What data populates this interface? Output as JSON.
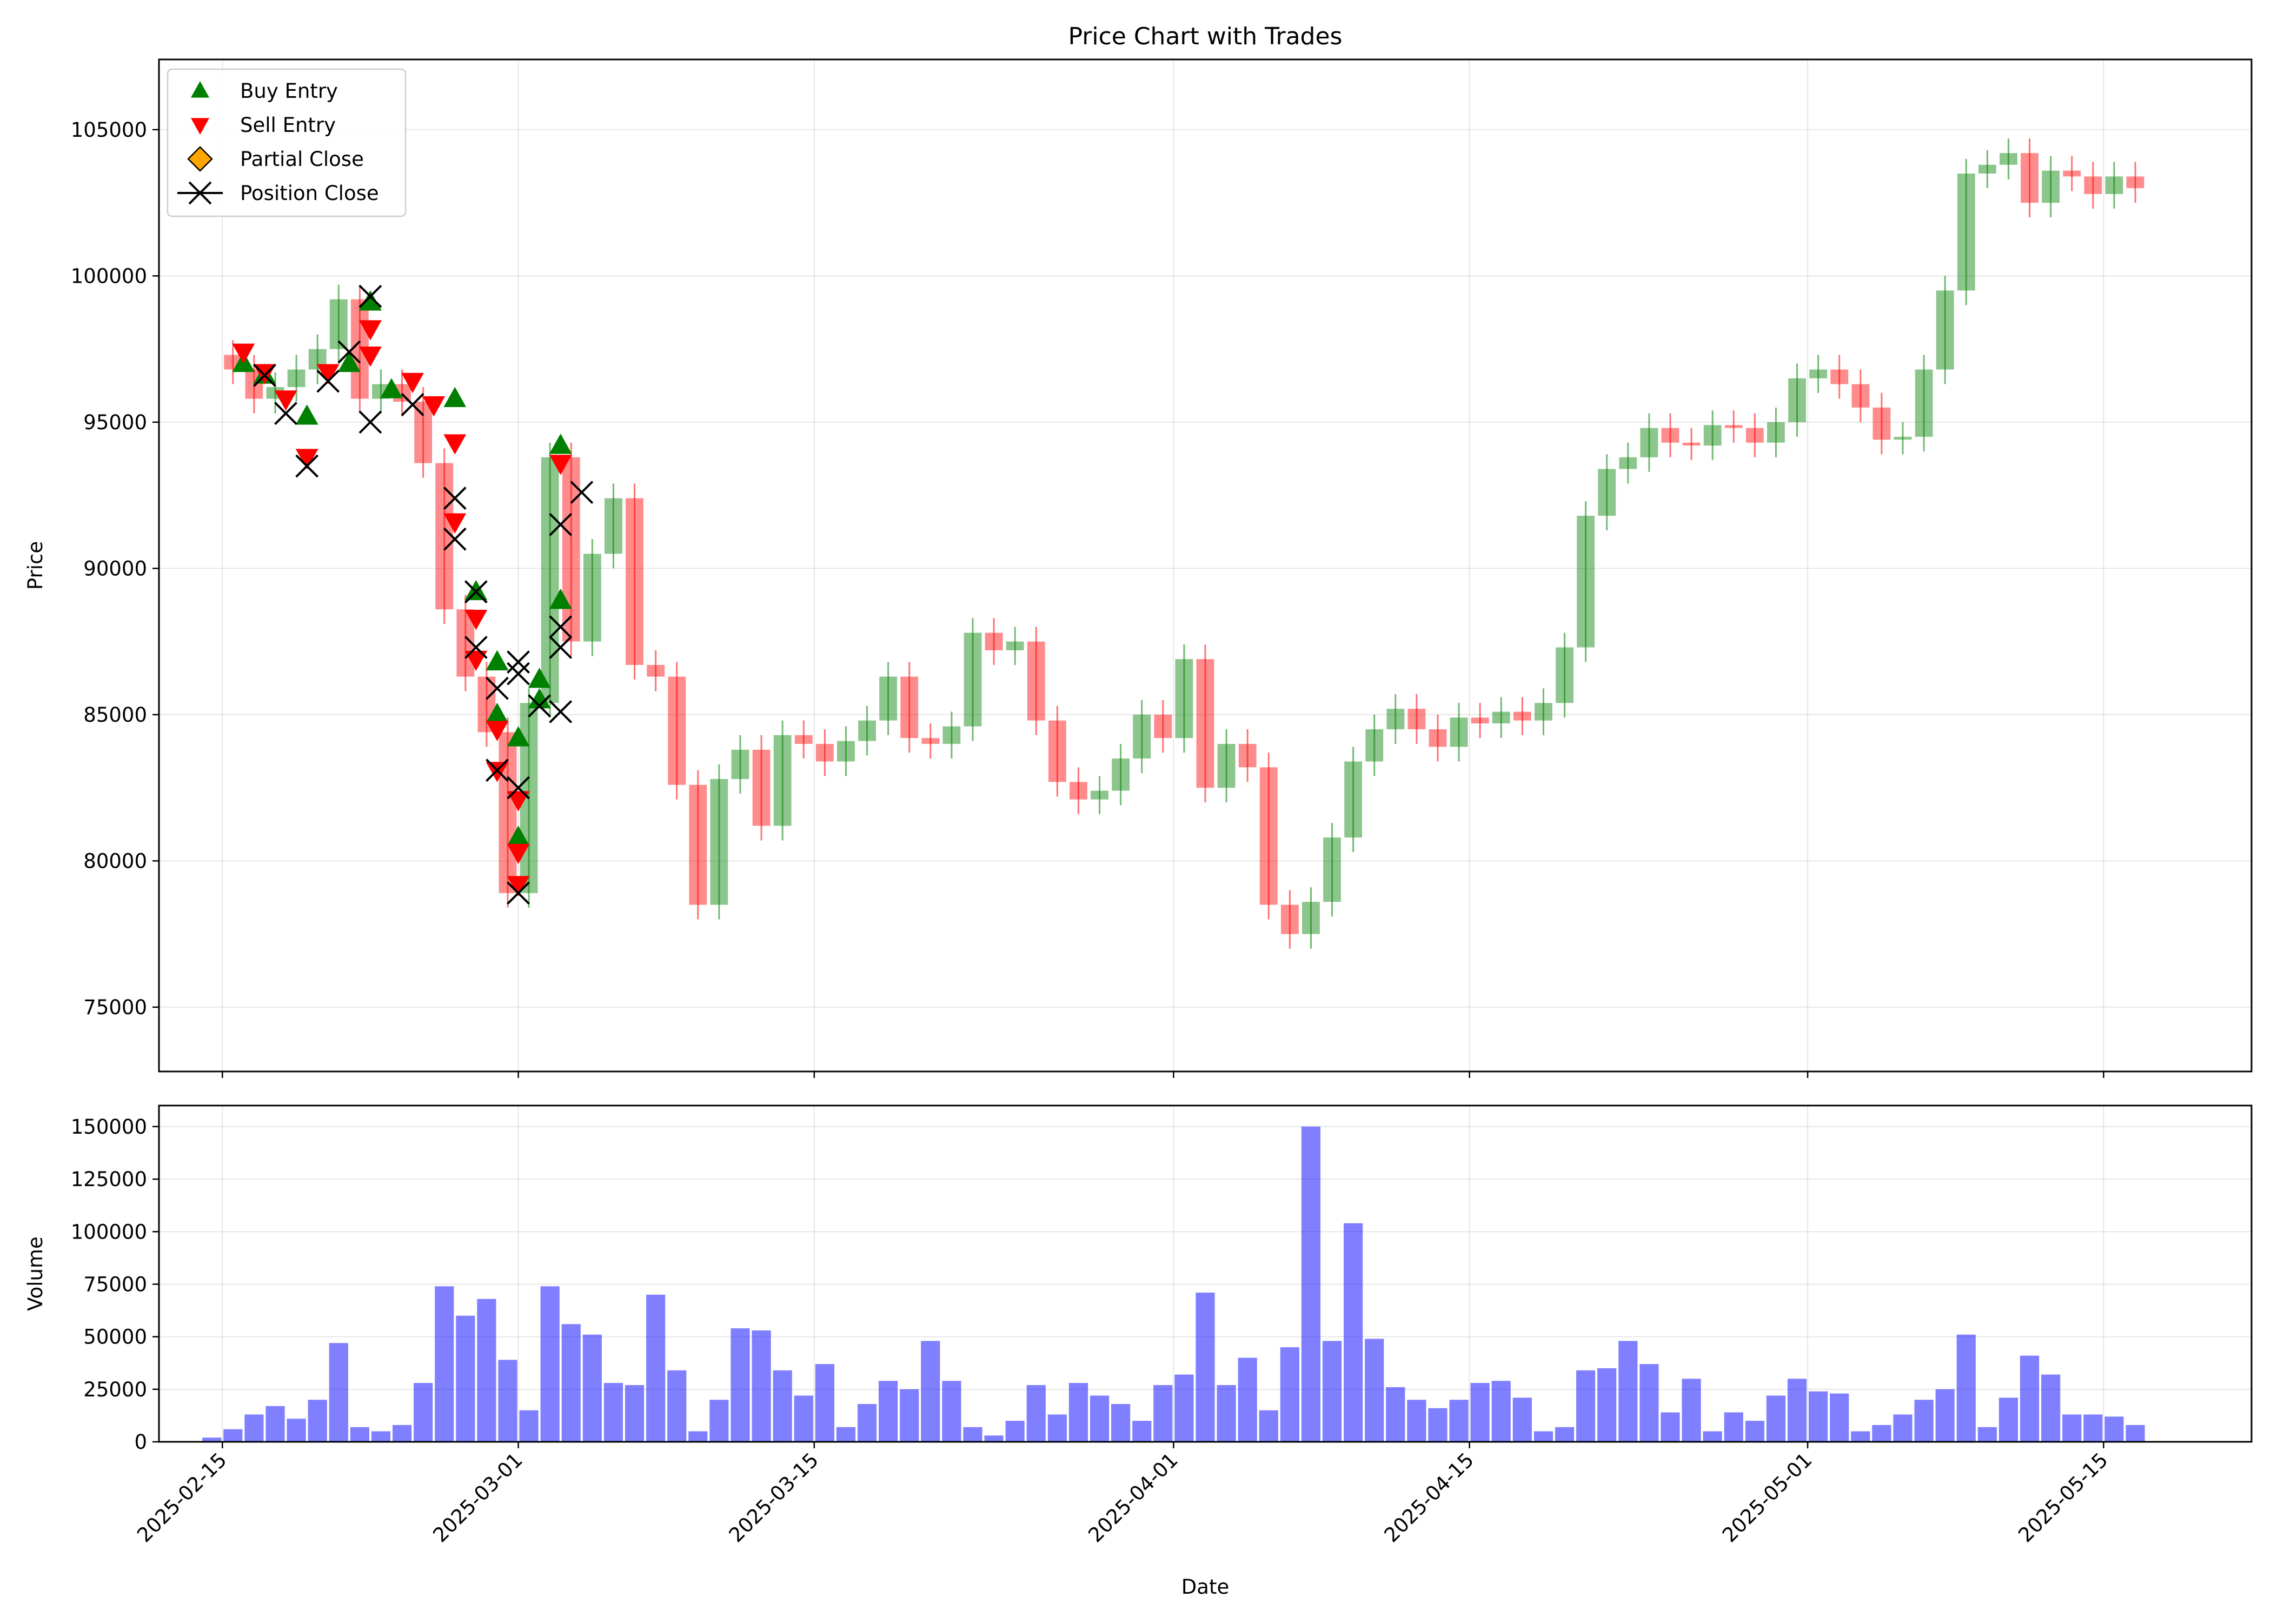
{
  "chart_data": [
    {
      "type": "line",
      "title": "Price Chart with Trades",
      "xlabel": "",
      "ylabel": "Price",
      "ylim": [
        72800,
        107400
      ],
      "xlim": [
        "2025-02-12",
        "2025-05-22"
      ],
      "grid": true,
      "x_ticks": [
        "2025-02-15",
        "2025-03-01",
        "2025-03-15",
        "2025-04-01",
        "2025-04-15",
        "2025-05-01",
        "2025-05-15"
      ],
      "y_ticks": [
        75000,
        80000,
        85000,
        90000,
        95000,
        100000,
        105000
      ],
      "y_tick_labels": [
        "75000",
        "80000",
        "85000",
        "90000",
        "95000",
        "100000",
        "105000"
      ],
      "legend_position": "top-left",
      "legend": [
        {
          "label": "Buy Entry",
          "marker": "triangle-up",
          "color": "#008000"
        },
        {
          "label": "Sell Entry",
          "marker": "triangle-down",
          "color": "#ff0000"
        },
        {
          "label": "Partial Close",
          "marker": "diamond",
          "color": "#ffa500"
        },
        {
          "label": "Position Close",
          "marker": "x",
          "color": "#000000"
        }
      ],
      "candle_colors": {
        "up": "#008000",
        "down": "#ff0000",
        "alpha": 0.45
      },
      "price_series": {
        "name": "",
        "x": [
          "2025-02-15",
          "2025-02-16",
          "2025-02-17",
          "2025-02-18",
          "2025-02-19",
          "2025-02-20",
          "2025-02-21",
          "2025-02-22",
          "2025-02-23",
          "2025-02-24",
          "2025-02-25",
          "2025-02-26",
          "2025-02-27",
          "2025-02-28",
          "2025-03-01",
          "2025-03-02",
          "2025-03-03",
          "2025-03-04",
          "2025-03-05",
          "2025-03-06",
          "2025-03-07",
          "2025-03-08",
          "2025-03-09",
          "2025-03-10",
          "2025-03-11",
          "2025-03-12",
          "2025-03-13",
          "2025-03-14",
          "2025-03-15",
          "2025-03-16",
          "2025-03-17",
          "2025-03-18",
          "2025-03-19",
          "2025-03-20",
          "2025-03-21",
          "2025-03-22",
          "2025-03-23",
          "2025-03-24",
          "2025-03-25",
          "2025-03-26",
          "2025-03-27",
          "2025-03-28",
          "2025-03-29",
          "2025-03-30",
          "2025-03-31",
          "2025-04-01",
          "2025-04-02",
          "2025-04-03",
          "2025-04-04",
          "2025-04-05",
          "2025-04-06",
          "2025-04-07",
          "2025-04-08",
          "2025-04-09",
          "2025-04-10",
          "2025-04-11",
          "2025-04-12",
          "2025-04-13",
          "2025-04-14",
          "2025-04-15",
          "2025-04-16",
          "2025-04-17",
          "2025-04-18",
          "2025-04-19",
          "2025-04-20",
          "2025-04-21",
          "2025-04-22",
          "2025-04-23",
          "2025-04-24",
          "2025-04-25",
          "2025-04-26",
          "2025-04-27",
          "2025-04-28",
          "2025-04-29",
          "2025-04-30",
          "2025-05-01",
          "2025-05-02",
          "2025-05-03",
          "2025-05-04",
          "2025-05-05",
          "2025-05-06",
          "2025-05-07",
          "2025-05-08",
          "2025-05-09",
          "2025-05-10",
          "2025-05-11",
          "2025-05-12",
          "2025-05-13",
          "2025-05-14",
          "2025-05-15",
          "2025-05-16",
          "2025-05-17"
        ],
        "y": [
          97300,
          96800,
          95800,
          96200,
          96800,
          97500,
          99200,
          95800,
          96300,
          95700,
          93600,
          88600,
          86300,
          84400,
          78900,
          85400,
          93800,
          87500,
          90500,
          92400,
          86700,
          86300,
          82600,
          78500,
          82800,
          83800,
          81200,
          84300,
          84000,
          83400,
          84100,
          84800,
          86300,
          84200,
          84000,
          84600,
          87800,
          87200,
          87500,
          84800,
          82700,
          82100,
          82400,
          83500,
          85000,
          84200,
          86900,
          82500,
          84000,
          83200,
          78500,
          77500,
          78600,
          80800,
          83400,
          84500,
          85200,
          84500,
          83900,
          84900,
          84700,
          85100,
          84800,
          85400,
          87300,
          91800,
          93400,
          93800,
          94800,
          94300,
          94200,
          94900,
          94800,
          94300,
          95000,
          96500,
          96800,
          96300,
          95500,
          94400,
          94500,
          96800,
          99500,
          103500,
          103800,
          104200,
          102500,
          103600,
          103400,
          102800,
          103400,
          103000
        ]
      },
      "trade_markers": {
        "buy_entry": [
          {
            "x": "2025-02-16",
            "y": 97000
          },
          {
            "x": "2025-02-17",
            "y": 96600
          },
          {
            "x": "2025-02-19",
            "y": 95200
          },
          {
            "x": "2025-02-21",
            "y": 97000
          },
          {
            "x": "2025-02-22",
            "y": 99100
          },
          {
            "x": "2025-02-23",
            "y": 96100
          },
          {
            "x": "2025-02-26",
            "y": 95800
          },
          {
            "x": "2025-02-27",
            "y": 89200
          },
          {
            "x": "2025-02-28",
            "y": 85000
          },
          {
            "x": "2025-02-28",
            "y": 86800
          },
          {
            "x": "2025-03-01",
            "y": 80800
          },
          {
            "x": "2025-03-01",
            "y": 84200
          },
          {
            "x": "2025-03-02",
            "y": 85500
          },
          {
            "x": "2025-03-02",
            "y": 86200
          },
          {
            "x": "2025-03-03",
            "y": 88900
          },
          {
            "x": "2025-03-03",
            "y": 94200
          }
        ],
        "sell_entry": [
          {
            "x": "2025-02-16",
            "y": 97400
          },
          {
            "x": "2025-02-17",
            "y": 96700
          },
          {
            "x": "2025-02-18",
            "y": 95800
          },
          {
            "x": "2025-02-19",
            "y": 93800
          },
          {
            "x": "2025-02-20",
            "y": 96700
          },
          {
            "x": "2025-02-22",
            "y": 98200
          },
          {
            "x": "2025-02-22",
            "y": 97300
          },
          {
            "x": "2025-02-24",
            "y": 96400
          },
          {
            "x": "2025-02-25",
            "y": 95600
          },
          {
            "x": "2025-02-26",
            "y": 94300
          },
          {
            "x": "2025-02-26",
            "y": 91600
          },
          {
            "x": "2025-02-27",
            "y": 88300
          },
          {
            "x": "2025-02-27",
            "y": 86900
          },
          {
            "x": "2025-02-28",
            "y": 84500
          },
          {
            "x": "2025-02-28",
            "y": 83100
          },
          {
            "x": "2025-03-01",
            "y": 80300
          },
          {
            "x": "2025-03-01",
            "y": 79200
          },
          {
            "x": "2025-03-01",
            "y": 82100
          },
          {
            "x": "2025-03-03",
            "y": 93600
          }
        ],
        "partial_close": [],
        "position_close": [
          {
            "x": "2025-02-17",
            "y": 96600
          },
          {
            "x": "2025-02-18",
            "y": 95300
          },
          {
            "x": "2025-02-19",
            "y": 93500
          },
          {
            "x": "2025-02-20",
            "y": 96400
          },
          {
            "x": "2025-02-21",
            "y": 97400
          },
          {
            "x": "2025-02-22",
            "y": 99300
          },
          {
            "x": "2025-02-22",
            "y": 95000
          },
          {
            "x": "2025-02-24",
            "y": 95600
          },
          {
            "x": "2025-02-26",
            "y": 92400
          },
          {
            "x": "2025-02-26",
            "y": 91000
          },
          {
            "x": "2025-02-27",
            "y": 89200
          },
          {
            "x": "2025-02-27",
            "y": 87300
          },
          {
            "x": "2025-02-28",
            "y": 85900
          },
          {
            "x": "2025-02-28",
            "y": 83100
          },
          {
            "x": "2025-02-29",
            "y": 86800
          },
          {
            "x": "2025-03-01",
            "y": 82500
          },
          {
            "x": "2025-03-01",
            "y": 78900
          },
          {
            "x": "2025-03-01",
            "y": 86400
          },
          {
            "x": "2025-03-02",
            "y": 85300
          },
          {
            "x": "2025-03-03",
            "y": 88000
          },
          {
            "x": "2025-03-03",
            "y": 87300
          },
          {
            "x": "2025-03-03",
            "y": 91500
          },
          {
            "x": "2025-03-03",
            "y": 85100
          },
          {
            "x": "2025-03-04",
            "y": 92600
          }
        ]
      }
    },
    {
      "type": "bar",
      "title": "",
      "xlabel": "Date",
      "ylabel": "Volume",
      "ylim": [
        0,
        160000
      ],
      "xlim": [
        "2025-02-12",
        "2025-05-22"
      ],
      "grid": true,
      "color": "#0000ff",
      "alpha": 0.5,
      "x_ticks": [
        "2025-02-15",
        "2025-03-01",
        "2025-03-15",
        "2025-04-01",
        "2025-04-15",
        "2025-05-01",
        "2025-05-15"
      ],
      "y_ticks": [
        0,
        25000,
        50000,
        75000,
        100000,
        125000,
        150000
      ],
      "y_tick_labels": [
        "0",
        "25000",
        "50000",
        "75000",
        "100000",
        "125000",
        "150000"
      ],
      "series": [
        {
          "name": "",
          "x": [
            "2025-02-15",
            "2025-02-16",
            "2025-02-17",
            "2025-02-18",
            "2025-02-19",
            "2025-02-20",
            "2025-02-21",
            "2025-02-22",
            "2025-02-23",
            "2025-02-24",
            "2025-02-25",
            "2025-02-26",
            "2025-02-27",
            "2025-02-28",
            "2025-03-01",
            "2025-03-02",
            "2025-03-03",
            "2025-03-04",
            "2025-03-05",
            "2025-03-06",
            "2025-03-07",
            "2025-03-08",
            "2025-03-09",
            "2025-03-10",
            "2025-03-11",
            "2025-03-12",
            "2025-03-13",
            "2025-03-14",
            "2025-03-15",
            "2025-03-16",
            "2025-03-17",
            "2025-03-18",
            "2025-03-19",
            "2025-03-20",
            "2025-03-21",
            "2025-03-22",
            "2025-03-23",
            "2025-03-24",
            "2025-03-25",
            "2025-03-26",
            "2025-03-27",
            "2025-03-28",
            "2025-03-29",
            "2025-03-30",
            "2025-03-31",
            "2025-04-01",
            "2025-04-02",
            "2025-04-03",
            "2025-04-04",
            "2025-04-05",
            "2025-04-06",
            "2025-04-07",
            "2025-04-08",
            "2025-04-09",
            "2025-04-10",
            "2025-04-11",
            "2025-04-12",
            "2025-04-13",
            "2025-04-14",
            "2025-04-15",
            "2025-04-16",
            "2025-04-17",
            "2025-04-18",
            "2025-04-19",
            "2025-04-20",
            "2025-04-21",
            "2025-04-22",
            "2025-04-23",
            "2025-04-24",
            "2025-04-25",
            "2025-04-26",
            "2025-04-27",
            "2025-04-28",
            "2025-04-29",
            "2025-04-30",
            "2025-05-01",
            "2025-05-02",
            "2025-05-03",
            "2025-05-04",
            "2025-05-05",
            "2025-05-06",
            "2025-05-07",
            "2025-05-08",
            "2025-05-09",
            "2025-05-10",
            "2025-05-11",
            "2025-05-12",
            "2025-05-13",
            "2025-05-14",
            "2025-05-15",
            "2025-05-16",
            "2025-05-17"
          ],
          "values": [
            2000,
            6000,
            13000,
            17000,
            11000,
            20000,
            47000,
            7000,
            5000,
            8000,
            28000,
            74000,
            60000,
            68000,
            39000,
            15000,
            74000,
            56000,
            51000,
            28000,
            27000,
            70000,
            34000,
            5000,
            20000,
            54000,
            53000,
            34000,
            22000,
            37000,
            7000,
            18000,
            29000,
            25000,
            48000,
            29000,
            7000,
            3000,
            10000,
            27000,
            13000,
            28000,
            22000,
            18000,
            10000,
            27000,
            32000,
            71000,
            27000,
            40000,
            15000,
            45000,
            150000,
            48000,
            104000,
            49000,
            26000,
            20000,
            16000,
            20000,
            28000,
            29000,
            21000,
            5000,
            7000,
            34000,
            35000,
            48000,
            37000,
            14000,
            30000,
            5000,
            14000,
            10000,
            22000,
            30000,
            24000,
            23000,
            5000,
            8000,
            13000,
            20000,
            25000,
            51000,
            7000,
            21000,
            41000,
            32000,
            13000,
            13000,
            12000,
            8000
          ]
        }
      ]
    }
  ]
}
